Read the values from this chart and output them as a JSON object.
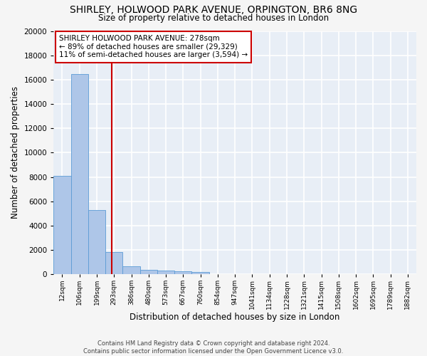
{
  "title": "SHIRLEY, HOLWOOD PARK AVENUE, ORPINGTON, BR6 8NG",
  "subtitle": "Size of property relative to detached houses in London",
  "xlabel": "Distribution of detached houses by size in London",
  "ylabel": "Number of detached properties",
  "categories": [
    "12sqm",
    "106sqm",
    "199sqm",
    "293sqm",
    "386sqm",
    "480sqm",
    "573sqm",
    "667sqm",
    "760sqm",
    "854sqm",
    "947sqm",
    "1041sqm",
    "1134sqm",
    "1228sqm",
    "1321sqm",
    "1415sqm",
    "1508sqm",
    "1602sqm",
    "1695sqm",
    "1789sqm",
    "1882sqm"
  ],
  "values": [
    8100,
    16500,
    5300,
    1800,
    650,
    350,
    270,
    220,
    170,
    0,
    0,
    0,
    0,
    0,
    0,
    0,
    0,
    0,
    0,
    0,
    0
  ],
  "bar_color": "#aec6e8",
  "bar_edge_color": "#5b9bd5",
  "annotation_text_line1": "SHIRLEY HOLWOOD PARK AVENUE: 278sqm",
  "annotation_text_line2": "← 89% of detached houses are smaller (29,329)",
  "annotation_text_line3": "11% of semi-detached houses are larger (3,594) →",
  "annotation_box_color": "#ffffff",
  "annotation_border_color": "#cc0000",
  "vline_color": "#cc0000",
  "vline_bin": 2.849,
  "ylim": [
    0,
    20000
  ],
  "yticks": [
    0,
    2000,
    4000,
    6000,
    8000,
    10000,
    12000,
    14000,
    16000,
    18000,
    20000
  ],
  "footer_line1": "Contains HM Land Registry data © Crown copyright and database right 2024.",
  "footer_line2": "Contains public sector information licensed under the Open Government Licence v3.0.",
  "bg_color": "#e8eef6",
  "grid_color": "#ffffff",
  "fig_bg_color": "#f5f5f5"
}
